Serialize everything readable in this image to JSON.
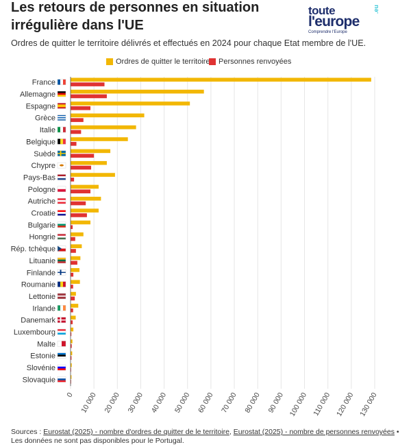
{
  "header": {
    "title": "Les retours de personnes en situation irrégulière dans l'UE",
    "subtitle": "Ordres de quitter le territoire délivrés et effectués en 2024 pour chaque Etat membre de l'UE."
  },
  "logo": {
    "line1": "toute",
    "line2": "l'europe",
    "suffix": ".eu",
    "tagline": "Comprendre l'Europe"
  },
  "colors": {
    "ordres": "#f2b705",
    "renvoyees": "#e03232",
    "grid": "#e6e6e6",
    "axis": "#555555"
  },
  "chart_data": {
    "type": "bar",
    "orientation": "horizontal",
    "title": "Les retours de personnes en situation irrégulière dans l'UE",
    "subtitle": "Ordres de quitter le territoire délivrés et effectués en 2024 pour chaque Etat membre de l'UE.",
    "xlim": [
      0,
      130000
    ],
    "ticks": [
      0,
      10000,
      20000,
      30000,
      40000,
      50000,
      60000,
      70000,
      80000,
      90000,
      100000,
      110000,
      120000,
      130000
    ],
    "tick_labels": [
      "0",
      "10 000",
      "20 000",
      "30 000",
      "40 000",
      "50 000",
      "60 000",
      "70 000",
      "80 000",
      "90 000",
      "100 000",
      "110 000",
      "120 000",
      "130 000"
    ],
    "legend_position": "top",
    "categories": [
      "France",
      "Allemagne",
      "Espagne",
      "Grèce",
      "Italie",
      "Belgique",
      "Suède",
      "Chypre",
      "Pays-Bas",
      "Pologne",
      "Autriche",
      "Croatie",
      "Bulgarie",
      "Hongrie",
      "Rép. tchèque",
      "Lituanie",
      "Finlande",
      "Roumanie",
      "Lettonie",
      "Irlande",
      "Danemark",
      "Luxembourg",
      "Malte",
      "Estonie",
      "Slovénie",
      "Slovaquie"
    ],
    "flags": [
      "fr",
      "de",
      "es",
      "gr",
      "it",
      "be",
      "se",
      "cy",
      "nl",
      "pl",
      "at",
      "hr",
      "bg",
      "hu",
      "cz",
      "lt",
      "fi",
      "ro",
      "lv",
      "ie",
      "dk",
      "lu",
      "mt",
      "ee",
      "si",
      "sk"
    ],
    "series": [
      {
        "name": "Ordres de quitter le territoire",
        "values": [
          128500,
          57000,
          51000,
          31500,
          28000,
          24500,
          17000,
          15500,
          19000,
          12000,
          13000,
          12000,
          8500,
          5500,
          4800,
          4200,
          3800,
          4000,
          2300,
          3300,
          2200,
          1200,
          800,
          700,
          500,
          400
        ]
      },
      {
        "name": "Personnes renvoyées",
        "values": [
          14500,
          15500,
          8500,
          5500,
          4500,
          2500,
          10000,
          8800,
          1500,
          8500,
          6500,
          7000,
          900,
          2000,
          2300,
          2900,
          1200,
          1100,
          1800,
          1100,
          900,
          350,
          500,
          400,
          200,
          150
        ]
      }
    ]
  },
  "sources": {
    "prefix": "Sources : ",
    "link1": "Eurostat (2025) - nombre d'ordres de quitter de le territoire",
    "sep": ", ",
    "link2": "Eurostat (2025) - nombre de personnes renvoyées",
    "suffix": " • Les données ne sont pas disponibles pour le Portugal."
  }
}
